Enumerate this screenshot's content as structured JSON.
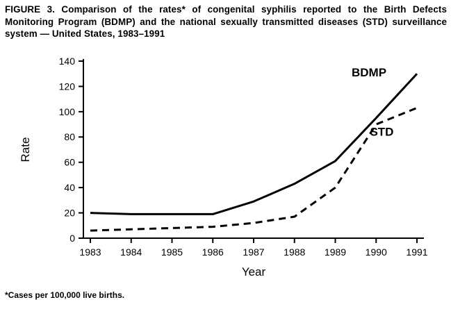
{
  "figure": {
    "title": "FIGURE 3. Comparison of the rates* of congenital syphilis reported to the Birth Defects Monitoring Program (BDMP) and the national sexually transmitted diseases (STD) surveillance system — United States, 1983–1991",
    "footnote": "*Cases per 100,000 live births."
  },
  "chart_data": {
    "type": "line",
    "x": [
      1983,
      1984,
      1985,
      1986,
      1987,
      1988,
      1989,
      1990,
      1991
    ],
    "series": [
      {
        "name": "BDMP",
        "style": "solid",
        "values": [
          20,
          19,
          19,
          19,
          29,
          43,
          61,
          95,
          130
        ],
        "label_pos": {
          "x": 1989.4,
          "y": 128
        }
      },
      {
        "name": "STD",
        "style": "dashed",
        "values": [
          6,
          7,
          8,
          9,
          12,
          17,
          40,
          90,
          103
        ],
        "label_pos": {
          "x": 1989.85,
          "y": 81
        }
      }
    ],
    "xlabel": "Year",
    "ylabel": "Rate",
    "xlim": [
      1983,
      1991
    ],
    "ylim": [
      0,
      140
    ],
    "ytick_step": 20,
    "grid": false,
    "legend": "inline-labels"
  },
  "colors": {
    "ink": "#000000",
    "background": "#ffffff"
  }
}
